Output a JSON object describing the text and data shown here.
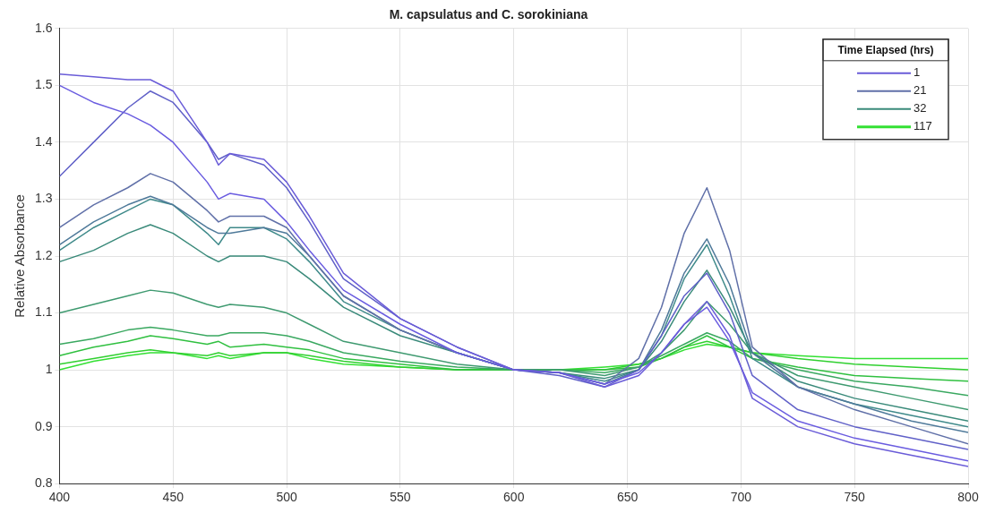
{
  "chart_data": {
    "type": "line",
    "title": "M. capsulatus and C. sorokiniana",
    "ylabel": "Relative Absorbance",
    "legend_title": "Time Elapsed (hrs)",
    "x": [
      400,
      415,
      430,
      440,
      450,
      465,
      470,
      475,
      490,
      500,
      510,
      525,
      550,
      575,
      600,
      620,
      640,
      655,
      665,
      675,
      685,
      695,
      705,
      725,
      750,
      775,
      800
    ],
    "xlim": [
      400,
      800
    ],
    "xticks": [
      400,
      450,
      500,
      550,
      600,
      650,
      700,
      750,
      800
    ],
    "ylim": [
      0.8,
      1.6
    ],
    "yticks": [
      0.8,
      0.9,
      1,
      1.1,
      1.2,
      1.3,
      1.4,
      1.5,
      1.6
    ],
    "grid": true,
    "legend": "top right",
    "marker": "none",
    "line_style": "solid",
    "series": [
      {
        "name": "1",
        "color": "#6a5cd8",
        "values": [
          1.52,
          1.515,
          1.51,
          1.51,
          1.49,
          1.4,
          1.36,
          1.38,
          1.37,
          1.33,
          1.27,
          1.17,
          1.09,
          1.04,
          1.0,
          0.995,
          0.97,
          0.99,
          1.03,
          1.08,
          1.12,
          1.06,
          0.95,
          0.9,
          0.87,
          0.85,
          0.83
        ]
      },
      {
        "color": "#6a5ce0",
        "values": [
          1.5,
          1.47,
          1.45,
          1.43,
          1.4,
          1.33,
          1.3,
          1.31,
          1.3,
          1.26,
          1.21,
          1.14,
          1.08,
          1.03,
          1.0,
          0.995,
          0.975,
          0.995,
          1.03,
          1.08,
          1.11,
          1.05,
          0.96,
          0.91,
          0.88,
          0.86,
          0.84
        ]
      },
      {
        "color": "#6060c8",
        "values": [
          1.34,
          1.4,
          1.46,
          1.49,
          1.47,
          1.4,
          1.37,
          1.38,
          1.36,
          1.32,
          1.26,
          1.16,
          1.09,
          1.04,
          1.0,
          0.99,
          0.97,
          1.0,
          1.06,
          1.13,
          1.17,
          1.1,
          0.99,
          0.93,
          0.9,
          0.88,
          0.86
        ]
      },
      {
        "name": "21",
        "color": "#6070a8",
        "values": [
          1.25,
          1.29,
          1.32,
          1.345,
          1.33,
          1.28,
          1.26,
          1.27,
          1.27,
          1.25,
          1.2,
          1.13,
          1.07,
          1.03,
          1.0,
          0.995,
          0.975,
          1.02,
          1.11,
          1.24,
          1.32,
          1.21,
          1.04,
          0.97,
          0.93,
          0.9,
          0.87
        ]
      },
      {
        "color": "#4f7a9a",
        "values": [
          1.22,
          1.26,
          1.29,
          1.305,
          1.29,
          1.25,
          1.24,
          1.24,
          1.25,
          1.24,
          1.2,
          1.13,
          1.07,
          1.03,
          1.0,
          0.995,
          0.975,
          1.0,
          1.07,
          1.17,
          1.23,
          1.15,
          1.03,
          0.97,
          0.94,
          0.91,
          0.89
        ]
      },
      {
        "color": "#3f8a8a",
        "values": [
          1.21,
          1.25,
          1.28,
          1.3,
          1.29,
          1.24,
          1.22,
          1.25,
          1.25,
          1.23,
          1.19,
          1.12,
          1.07,
          1.03,
          1.0,
          0.995,
          0.98,
          1.0,
          1.06,
          1.16,
          1.22,
          1.13,
          1.02,
          0.97,
          0.94,
          0.92,
          0.9
        ]
      },
      {
        "name": "32",
        "color": "#3a8a7a",
        "values": [
          1.19,
          1.21,
          1.24,
          1.255,
          1.24,
          1.2,
          1.19,
          1.2,
          1.2,
          1.19,
          1.16,
          1.11,
          1.06,
          1.03,
          1.0,
          0.995,
          0.985,
          1.0,
          1.05,
          1.12,
          1.175,
          1.11,
          1.03,
          0.98,
          0.95,
          0.93,
          0.91
        ]
      },
      {
        "color": "#3f9a70",
        "values": [
          1.1,
          1.115,
          1.13,
          1.14,
          1.135,
          1.115,
          1.11,
          1.115,
          1.11,
          1.1,
          1.08,
          1.05,
          1.03,
          1.01,
          1.0,
          1.0,
          0.99,
          1.005,
          1.03,
          1.07,
          1.12,
          1.08,
          1.03,
          0.99,
          0.97,
          0.95,
          0.93
        ]
      },
      {
        "color": "#3aa860",
        "values": [
          1.045,
          1.055,
          1.07,
          1.075,
          1.07,
          1.06,
          1.06,
          1.065,
          1.065,
          1.06,
          1.05,
          1.03,
          1.015,
          1.005,
          1.0,
          1.0,
          0.995,
          1.005,
          1.025,
          1.045,
          1.065,
          1.05,
          1.02,
          1.0,
          0.98,
          0.97,
          0.955
        ]
      },
      {
        "color": "#30c040",
        "values": [
          1.025,
          1.04,
          1.05,
          1.06,
          1.055,
          1.045,
          1.05,
          1.04,
          1.045,
          1.04,
          1.035,
          1.02,
          1.01,
          1.0,
          1.0,
          1.0,
          1.0,
          1.005,
          1.02,
          1.04,
          1.06,
          1.04,
          1.02,
          1.005,
          0.99,
          0.985,
          0.98
        ]
      },
      {
        "color": "#30d030",
        "values": [
          1.01,
          1.02,
          1.03,
          1.035,
          1.03,
          1.025,
          1.03,
          1.025,
          1.03,
          1.03,
          1.025,
          1.015,
          1.005,
          1.0,
          1.0,
          1.0,
          1.0,
          1.01,
          1.02,
          1.04,
          1.05,
          1.04,
          1.03,
          1.02,
          1.01,
          1.005,
          1.0
        ]
      },
      {
        "name": "117",
        "color": "#33e033",
        "values": [
          1.0,
          1.015,
          1.025,
          1.03,
          1.03,
          1.02,
          1.025,
          1.02,
          1.03,
          1.03,
          1.02,
          1.01,
          1.005,
          1.0,
          1.0,
          1.0,
          1.005,
          1.01,
          1.02,
          1.035,
          1.045,
          1.04,
          1.03,
          1.025,
          1.02,
          1.02,
          1.02
        ]
      }
    ]
  }
}
